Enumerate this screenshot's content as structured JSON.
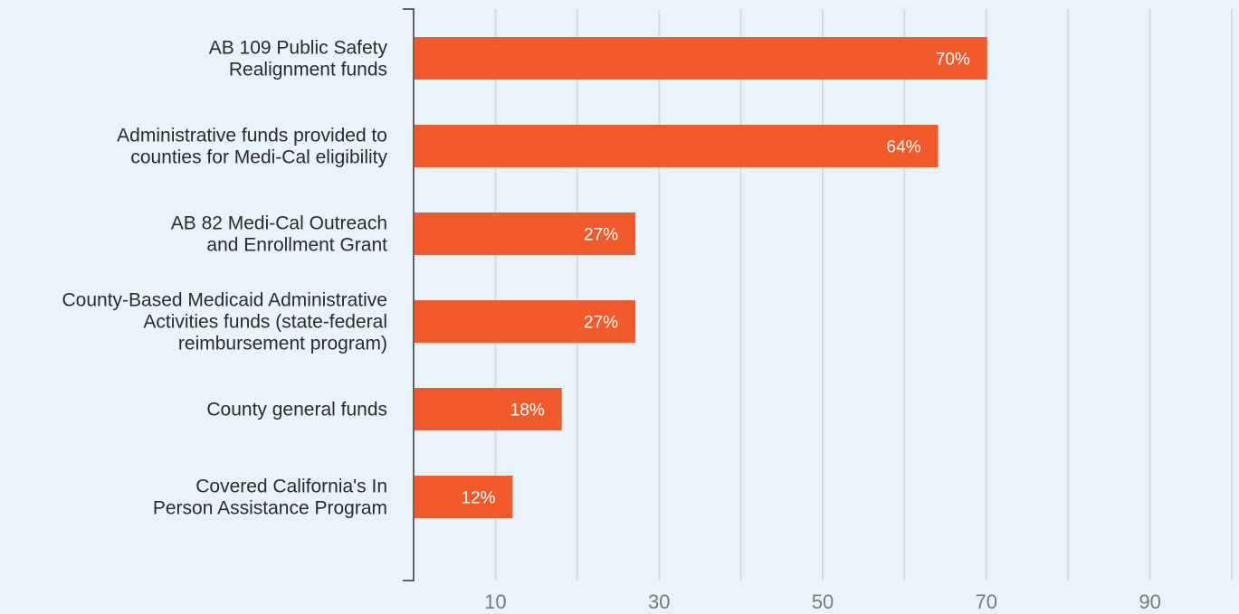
{
  "chart_data": {
    "type": "bar",
    "orientation": "horizontal",
    "categories": [
      [
        "AB 109 Public Safety",
        "Realignment funds"
      ],
      [
        "Administrative funds provided to",
        "counties for Medi-Cal eligibility"
      ],
      [
        "AB 82 Medi-Cal Outreach",
        "and Enrollment Grant"
      ],
      [
        "County-Based Medicaid Administrative",
        "Activities  funds (state-federal",
        "reimbursement program)"
      ],
      [
        "County general funds"
      ],
      [
        "Covered California's In",
        "Person Assistance Program"
      ]
    ],
    "values": [
      70,
      64,
      27,
      27,
      18,
      12
    ],
    "value_labels": [
      "70%",
      "64%",
      "27%",
      "27%",
      "18%",
      "12%"
    ],
    "xlim": [
      0,
      100
    ],
    "x_tick_labels": [
      {
        "value": 10,
        "label": "10"
      },
      {
        "value": 30,
        "label": "30"
      },
      {
        "value": 50,
        "label": "50"
      },
      {
        "value": 70,
        "label": "70"
      },
      {
        "value": 90,
        "label": "90"
      }
    ],
    "gridlines": [
      10,
      20,
      30,
      40,
      50,
      60,
      70,
      80,
      90,
      100
    ],
    "grid": true,
    "bar_color": "#f15a2b",
    "title": "",
    "xlabel": "",
    "ylabel": ""
  }
}
